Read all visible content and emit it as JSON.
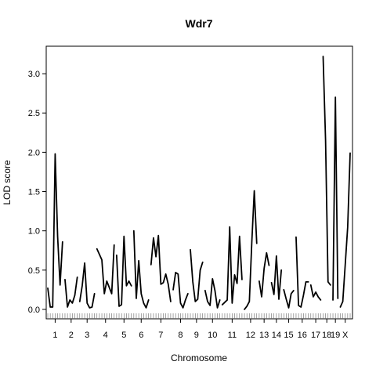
{
  "chart_data": {
    "type": "line",
    "title": "Wdr7",
    "xlabel": "Chromosome",
    "ylabel": "LOD score",
    "ylim": [
      -0.12,
      3.35
    ],
    "yticks": [
      0.0,
      0.5,
      1.0,
      1.5,
      2.0,
      2.5,
      3.0
    ],
    "ytick_labels": [
      "0.0",
      "0.5",
      "1.0",
      "1.5",
      "2.0",
      "2.5",
      "3.0"
    ],
    "grid": false,
    "chromosomes": [
      {
        "name": "1",
        "values": [
          0.27,
          0.03,
          0.03,
          1.98,
          0.93,
          0.31,
          0.86
        ]
      },
      {
        "name": "2",
        "values": [
          0.38,
          0.03,
          0.12,
          0.08,
          0.18,
          0.41
        ]
      },
      {
        "name": "3",
        "values": [
          0.1,
          0.3,
          0.59,
          0.08,
          0.02,
          0.03,
          0.2
        ]
      },
      {
        "name": "4",
        "values": [
          0.77,
          0.7,
          0.63,
          0.2,
          0.36,
          0.28,
          0.2,
          0.82
        ]
      },
      {
        "name": "5",
        "values": [
          0.69,
          0.04,
          0.06,
          0.93,
          0.3,
          0.36,
          0.3
        ]
      },
      {
        "name": "6",
        "values": [
          1.0,
          0.14,
          0.62,
          0.2,
          0.08,
          0.02,
          0.12
        ]
      },
      {
        "name": "7",
        "values": [
          0.57,
          0.91,
          0.67,
          0.94,
          0.32,
          0.34,
          0.45,
          0.32,
          0.1
        ]
      },
      {
        "name": "8",
        "values": [
          0.25,
          0.47,
          0.45,
          0.08,
          0.02,
          0.12,
          0.2
        ]
      },
      {
        "name": "9",
        "values": [
          0.76,
          0.35,
          0.1,
          0.13,
          0.5,
          0.6
        ]
      },
      {
        "name": "10",
        "values": [
          0.24,
          0.1,
          0.05,
          0.39,
          0.24,
          0.02,
          0.12
        ]
      },
      {
        "name": "11",
        "values": [
          0.06,
          0.09,
          0.12,
          1.05,
          0.08,
          0.44,
          0.33,
          0.93,
          0.38
        ]
      },
      {
        "name": "12",
        "values": [
          0.0,
          0.04,
          0.1,
          0.86,
          1.51,
          0.84
        ]
      },
      {
        "name": "13",
        "values": [
          0.36,
          0.16,
          0.52,
          0.72,
          0.56
        ]
      },
      {
        "name": "14",
        "values": [
          0.34,
          0.19,
          0.68,
          0.13,
          0.5
        ]
      },
      {
        "name": "15",
        "values": [
          0.25,
          0.13,
          0.02,
          0.2,
          0.24
        ]
      },
      {
        "name": "16",
        "values": [
          0.92,
          0.05,
          0.03,
          0.18,
          0.35,
          0.35
        ]
      },
      {
        "name": "17",
        "values": [
          0.31,
          0.16,
          0.22,
          0.16,
          0.12
        ]
      },
      {
        "name": "18",
        "values": [
          3.22,
          2.15,
          0.35,
          0.31
        ]
      },
      {
        "name": "19",
        "values": [
          0.12,
          2.7,
          0.14
        ]
      },
      {
        "name": "X",
        "values": [
          0.03,
          0.1,
          0.57,
          1.05,
          1.99
        ]
      }
    ]
  }
}
